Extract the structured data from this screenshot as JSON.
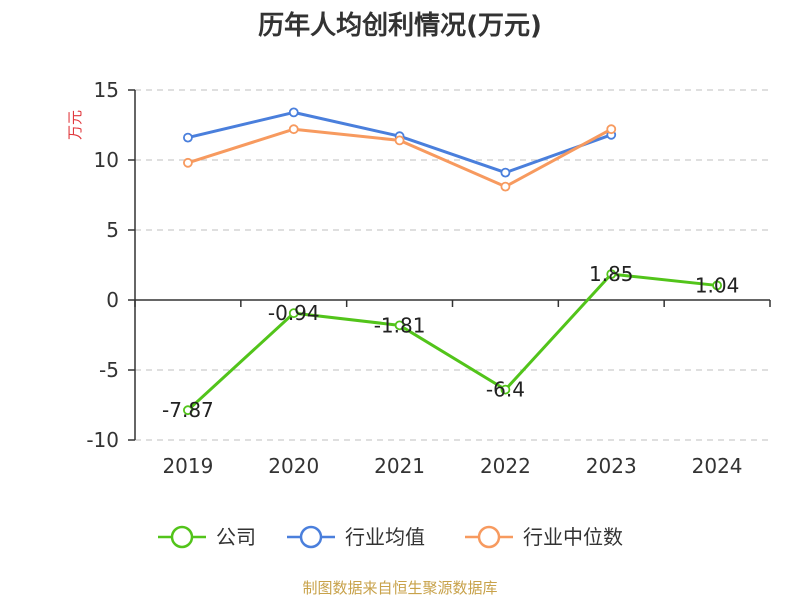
{
  "chart_data": {
    "type": "line",
    "title": "历年人均创利情况(万元)",
    "ylabel": "万元",
    "xlabel": "",
    "categories": [
      "2019",
      "2020",
      "2021",
      "2022",
      "2023",
      "2024"
    ],
    "ylim": [
      -10,
      15
    ],
    "yticks": [
      15,
      10,
      5,
      0,
      -5,
      -10
    ],
    "grid": true,
    "legend_position": "bottom",
    "series": [
      {
        "name": "公司",
        "color": "#52c41a",
        "values": [
          -7.87,
          -0.94,
          -1.81,
          -6.4,
          1.85,
          1.04
        ],
        "labels": [
          "-7.87",
          "-0.94",
          "-1.81",
          "-6.4",
          "1.85",
          "1.04"
        ]
      },
      {
        "name": "行业均值",
        "color": "#4a7fdc",
        "values": [
          11.6,
          13.4,
          11.7,
          9.1,
          11.8,
          null
        ]
      },
      {
        "name": "行业中位数",
        "color": "#f79a5f",
        "values": [
          9.8,
          12.2,
          11.4,
          8.1,
          12.2,
          null
        ]
      }
    ]
  },
  "source": "制图数据来自恒生聚源数据库",
  "colors": {
    "ylabel": "#e0393e",
    "source": "#c8a24a",
    "axis": "#333333",
    "grid": "#cccccc"
  }
}
